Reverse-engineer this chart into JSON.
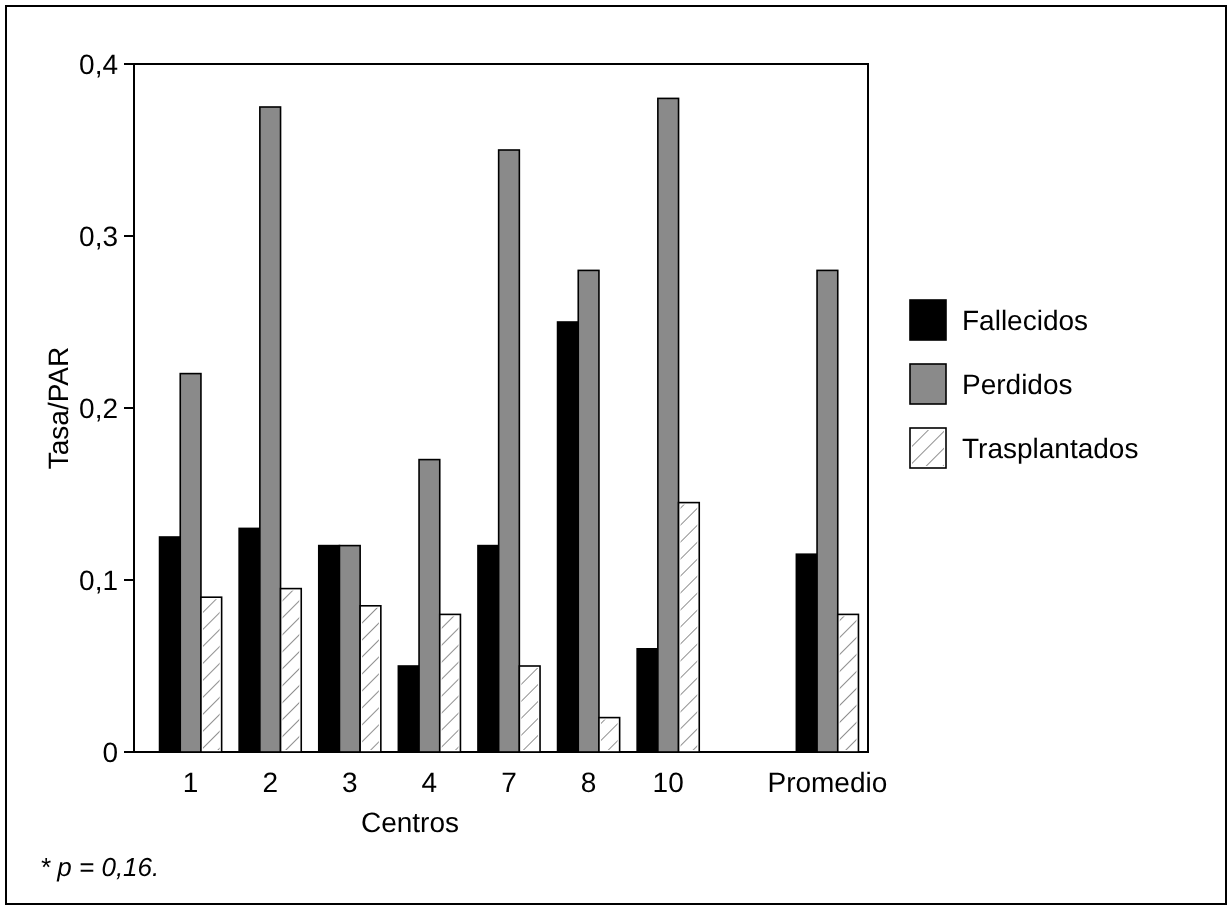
{
  "chart_data": {
    "type": "bar",
    "xlabel": "Centros",
    "ylabel": "Tasa/PAR",
    "categories": [
      "1",
      "2",
      "3",
      "4",
      "7",
      "8",
      "10",
      null,
      "Promedio"
    ],
    "series": [
      {
        "name": "Fallecidos",
        "color": "#000000",
        "values": [
          0.125,
          0.13,
          0.12,
          0.05,
          0.12,
          0.25,
          0.06,
          null,
          0.115
        ]
      },
      {
        "name": "Perdidos",
        "color": "#8a8a8a",
        "values": [
          0.22,
          0.375,
          0.12,
          0.17,
          0.35,
          0.28,
          0.38,
          null,
          0.28
        ]
      },
      {
        "name": "Trasplantados",
        "color": "#ffffff",
        "values": [
          0.09,
          0.095,
          0.085,
          0.08,
          0.05,
          0.02,
          0.145,
          null,
          0.08
        ]
      }
    ],
    "ylim": [
      0,
      0.4
    ],
    "yticks": [
      0,
      {
        "value": 0.1,
        "label": "0,1"
      },
      {
        "value": 0.2,
        "label": "0,2"
      },
      {
        "value": 0.3,
        "label": "0,3"
      },
      {
        "value": 0.4,
        "label": "0,4"
      }
    ],
    "grid": false,
    "legend": "right",
    "annotations": [
      "* p = 0,16."
    ]
  }
}
